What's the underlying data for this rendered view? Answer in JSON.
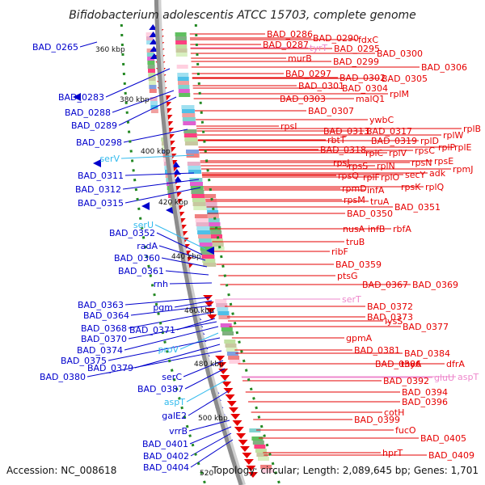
{
  "title": "Bifidobacterium adolescentis ATCC 15703, complete genome",
  "footer": {
    "accession": "Accession: NC_008618",
    "topology": "Topology: circular; Length: 2,089,645 bp; Genes: 1,701"
  },
  "colors": {
    "forward_gene": "#0000cc",
    "reverse_gene": "#e60000",
    "rna_forward": "#33bbee",
    "rna_reverse": "#ee88cc",
    "backbone": "#8c8c8c",
    "tick": "#228822"
  },
  "ticks": [
    "360 kbp",
    "380 kbp",
    "400 kbp",
    "420 kbp",
    "440 kbp",
    "460 kbp",
    "480 kbp",
    "500 kbp",
    "520"
  ],
  "left_labels": [
    {
      "text": "BAD_0265",
      "kind": "gene"
    },
    {
      "text": "BAD_0283",
      "kind": "gene"
    },
    {
      "text": "BAD_0288",
      "kind": "gene"
    },
    {
      "text": "BAD_0289",
      "kind": "gene"
    },
    {
      "text": "BAD_0298",
      "kind": "gene"
    },
    {
      "text": "serV",
      "kind": "rna"
    },
    {
      "text": "BAD_0311",
      "kind": "gene"
    },
    {
      "text": "BAD_0312",
      "kind": "gene"
    },
    {
      "text": "BAD_0315",
      "kind": "gene"
    },
    {
      "text": "serU",
      "kind": "rna"
    },
    {
      "text": "BAD_0352",
      "kind": "gene"
    },
    {
      "text": "radA",
      "kind": "gene"
    },
    {
      "text": "BAD_0360",
      "kind": "gene"
    },
    {
      "text": "BAD_0361",
      "kind": "gene"
    },
    {
      "text": "rnh",
      "kind": "gene"
    },
    {
      "text": "BAD_0363",
      "kind": "gene"
    },
    {
      "text": "pgm",
      "kind": "gene"
    },
    {
      "text": "BAD_0364",
      "kind": "gene"
    },
    {
      "text": "BAD_0368",
      "kind": "gene"
    },
    {
      "text": "BAD_0371",
      "kind": "gene"
    },
    {
      "text": "BAD_0370",
      "kind": "gene"
    },
    {
      "text": "BAD_0374",
      "kind": "gene"
    },
    {
      "text": "proV",
      "kind": "rna"
    },
    {
      "text": "BAD_0375",
      "kind": "gene"
    },
    {
      "text": "BAD_0379",
      "kind": "gene"
    },
    {
      "text": "BAD_0380",
      "kind": "gene"
    },
    {
      "text": "serC",
      "kind": "gene"
    },
    {
      "text": "BAD_0387",
      "kind": "gene"
    },
    {
      "text": "aspT",
      "kind": "rna"
    },
    {
      "text": "galE2",
      "kind": "gene"
    },
    {
      "text": "vrrB",
      "kind": "gene"
    },
    {
      "text": "BAD_0401",
      "kind": "gene"
    },
    {
      "text": "BAD_0402",
      "kind": "gene"
    },
    {
      "text": "BAD_0404",
      "kind": "gene"
    }
  ],
  "right_labels": [
    {
      "text": "BAD_0286",
      "kind": "gene"
    },
    {
      "text": "BAD_0290",
      "kind": "gene"
    },
    {
      "text": "fdxC",
      "kind": "gene"
    },
    {
      "text": "BAD_0287",
      "kind": "gene"
    },
    {
      "text": "tyrT",
      "kind": "rna"
    },
    {
      "text": "BAD_0295",
      "kind": "gene"
    },
    {
      "text": "BAD_0300",
      "kind": "gene"
    },
    {
      "text": "murB",
      "kind": "gene"
    },
    {
      "text": "BAD_0299",
      "kind": "gene"
    },
    {
      "text": "BAD_0306",
      "kind": "gene"
    },
    {
      "text": "BAD_0297",
      "kind": "gene"
    },
    {
      "text": "BAD_0302",
      "kind": "gene"
    },
    {
      "text": "BAD_0305",
      "kind": "gene"
    },
    {
      "text": "BAD_0301",
      "kind": "gene"
    },
    {
      "text": "BAD_0304",
      "kind": "gene"
    },
    {
      "text": "rplM",
      "kind": "gene"
    },
    {
      "text": "BAD_0303",
      "kind": "gene"
    },
    {
      "text": "malQ1",
      "kind": "gene"
    },
    {
      "text": "BAD_0307",
      "kind": "gene"
    },
    {
      "text": "ywbC",
      "kind": "gene"
    },
    {
      "text": "rpsI",
      "kind": "gene"
    },
    {
      "text": "BAD_0313",
      "kind": "gene"
    },
    {
      "text": "BAD_0317",
      "kind": "gene"
    },
    {
      "text": "rplB",
      "kind": "gene"
    },
    {
      "text": "rbtT",
      "kind": "gene"
    },
    {
      "text": "BAD_0319",
      "kind": "gene"
    },
    {
      "text": "rplD",
      "kind": "gene"
    },
    {
      "text": "rplW",
      "kind": "gene"
    },
    {
      "text": "BAD_0318",
      "kind": "gene"
    },
    {
      "text": "rplC",
      "kind": "gene"
    },
    {
      "text": "rplV",
      "kind": "gene"
    },
    {
      "text": "rpsC",
      "kind": "gene"
    },
    {
      "text": "rplP",
      "kind": "gene"
    },
    {
      "text": "rplE",
      "kind": "gene"
    },
    {
      "text": "rpsJ",
      "kind": "gene"
    },
    {
      "text": "rpsS",
      "kind": "gene"
    },
    {
      "text": "rplN",
      "kind": "gene"
    },
    {
      "text": "rpsN",
      "kind": "gene"
    },
    {
      "text": "rpsE",
      "kind": "gene"
    },
    {
      "text": "rpsQ",
      "kind": "gene"
    },
    {
      "text": "rplF",
      "kind": "gene"
    },
    {
      "text": "rplO",
      "kind": "gene"
    },
    {
      "text": "secY",
      "kind": "gene"
    },
    {
      "text": "adk",
      "kind": "gene"
    },
    {
      "text": "rpmJ",
      "kind": "gene"
    },
    {
      "text": "rpmD",
      "kind": "gene"
    },
    {
      "text": "infA",
      "kind": "gene"
    },
    {
      "text": "rpsK",
      "kind": "gene"
    },
    {
      "text": "rplQ",
      "kind": "gene"
    },
    {
      "text": "rpsM",
      "kind": "gene"
    },
    {
      "text": "truA",
      "kind": "gene"
    },
    {
      "text": "BAD_0350",
      "kind": "gene"
    },
    {
      "text": "BAD_0351",
      "kind": "gene"
    },
    {
      "text": "nusA",
      "kind": "gene"
    },
    {
      "text": "infB",
      "kind": "gene"
    },
    {
      "text": "rbfA",
      "kind": "gene"
    },
    {
      "text": "truB",
      "kind": "gene"
    },
    {
      "text": "ribF",
      "kind": "gene"
    },
    {
      "text": "BAD_0359",
      "kind": "gene"
    },
    {
      "text": "ptsG",
      "kind": "gene"
    },
    {
      "text": "BAD_0367",
      "kind": "gene"
    },
    {
      "text": "BAD_0369",
      "kind": "gene"
    },
    {
      "text": "serT",
      "kind": "rna"
    },
    {
      "text": "BAD_0372",
      "kind": "gene"
    },
    {
      "text": "BAD_0373",
      "kind": "gene"
    },
    {
      "text": "lysS",
      "kind": "gene"
    },
    {
      "text": "BAD_0377",
      "kind": "gene"
    },
    {
      "text": "gpmA",
      "kind": "gene"
    },
    {
      "text": "BAD_0381",
      "kind": "gene"
    },
    {
      "text": "BAD_0384",
      "kind": "gene"
    },
    {
      "text": "BAD_0386",
      "kind": "gene"
    },
    {
      "text": "thyA",
      "kind": "gene"
    },
    {
      "text": "dfrA",
      "kind": "gene"
    },
    {
      "text": "BAD_0392",
      "kind": "gene"
    },
    {
      "text": "gluU",
      "kind": "rna"
    },
    {
      "text": "aspT",
      "kind": "rna"
    },
    {
      "text": "BAD_0394",
      "kind": "gene"
    },
    {
      "text": "BAD_0396",
      "kind": "gene"
    },
    {
      "text": "cotH",
      "kind": "gene"
    },
    {
      "text": "BAD_0399",
      "kind": "gene"
    },
    {
      "text": "fucO",
      "kind": "gene"
    },
    {
      "text": "BAD_0405",
      "kind": "gene"
    },
    {
      "text": "hprT",
      "kind": "gene"
    },
    {
      "text": "BAD_0409",
      "kind": "gene"
    }
  ]
}
